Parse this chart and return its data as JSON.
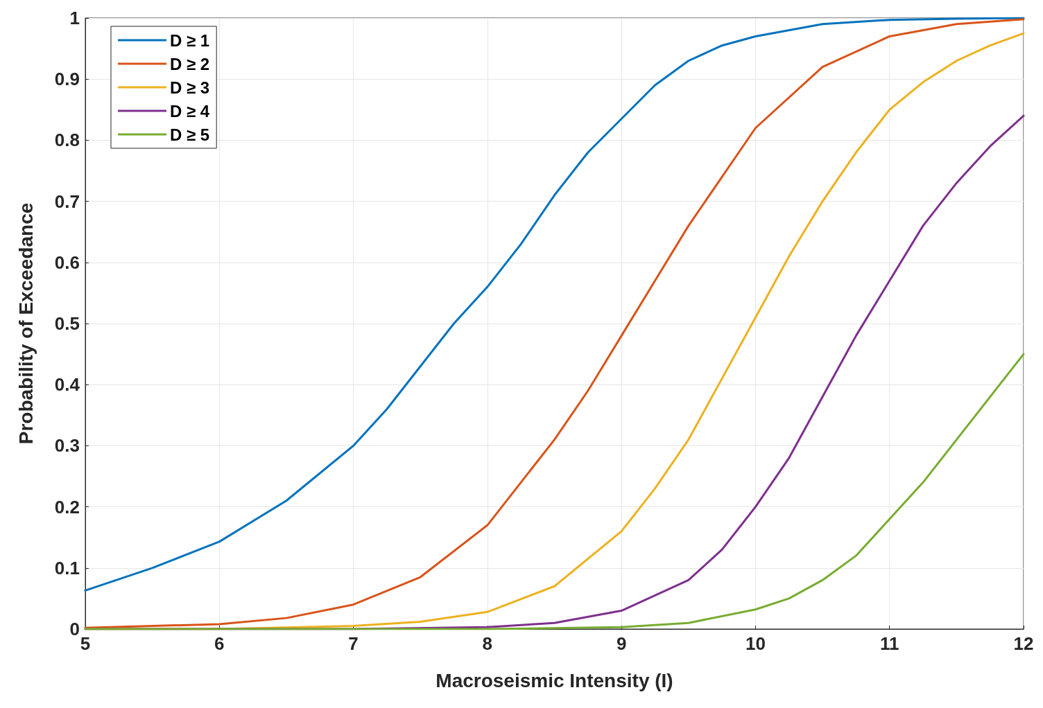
{
  "chart_data": {
    "type": "line",
    "xlabel": "Macroseismic Intensity (I)",
    "ylabel": "Probability of Exceedance",
    "xlim": [
      5,
      12
    ],
    "xticks": [
      5,
      6,
      7,
      8,
      9,
      10,
      11,
      12
    ],
    "ylim": [
      0,
      1
    ],
    "yticks": [
      0,
      0.1,
      0.2,
      0.3,
      0.4,
      0.5,
      0.6,
      0.7,
      0.8,
      0.9,
      1
    ],
    "grid": true,
    "legend": "top left",
    "marker": "none",
    "line_style": "solid",
    "series": [
      {
        "name": "D ≥ 1",
        "color": "#0072bd",
        "x": [
          5,
          5.5,
          6,
          6.5,
          7,
          7.25,
          7.5,
          7.75,
          8,
          8.25,
          8.5,
          8.75,
          9,
          9.25,
          9.5,
          9.75,
          10,
          10.5,
          11,
          11.5,
          12
        ],
        "values": [
          0.063,
          0.1,
          0.143,
          0.21,
          0.3,
          0.36,
          0.43,
          0.5,
          0.56,
          0.63,
          0.71,
          0.78,
          0.835,
          0.89,
          0.93,
          0.955,
          0.97,
          0.99,
          0.997,
          0.999,
          1
        ]
      },
      {
        "name": "D ≥ 2",
        "color": "#d95319",
        "x": [
          5,
          6,
          6.5,
          7,
          7.5,
          8,
          8.25,
          8.5,
          8.75,
          9,
          9.25,
          9.5,
          9.75,
          10,
          10.5,
          11,
          11.5,
          12
        ],
        "values": [
          0.002,
          0.008,
          0.018,
          0.04,
          0.085,
          0.17,
          0.24,
          0.31,
          0.39,
          0.48,
          0.57,
          0.66,
          0.74,
          0.82,
          0.92,
          0.97,
          0.99,
          0.998
        ]
      },
      {
        "name": "D ≥ 3",
        "color": "#edb120",
        "x": [
          5,
          6,
          7,
          7.5,
          8,
          8.5,
          9,
          9.25,
          9.5,
          9.75,
          10,
          10.25,
          10.5,
          10.75,
          11,
          11.25,
          11.5,
          11.75,
          12
        ],
        "values": [
          0,
          0,
          0.005,
          0.012,
          0.028,
          0.07,
          0.16,
          0.23,
          0.31,
          0.41,
          0.51,
          0.61,
          0.7,
          0.78,
          0.85,
          0.895,
          0.93,
          0.955,
          0.975
        ]
      },
      {
        "name": "D ≥ 4",
        "color": "#7e2f8e",
        "x": [
          5,
          7,
          8,
          8.5,
          9,
          9.5,
          9.75,
          10,
          10.25,
          10.5,
          10.75,
          11,
          11.25,
          11.5,
          11.75,
          12
        ],
        "values": [
          0,
          0,
          0.003,
          0.01,
          0.03,
          0.08,
          0.13,
          0.2,
          0.28,
          0.38,
          0.48,
          0.57,
          0.66,
          0.73,
          0.79,
          0.84
        ]
      },
      {
        "name": "D ≥ 5",
        "color": "#77ac30",
        "x": [
          5,
          8,
          9,
          9.5,
          10,
          10.25,
          10.5,
          10.75,
          11,
          11.25,
          11.5,
          11.75,
          12
        ],
        "values": [
          0,
          0,
          0.003,
          0.01,
          0.032,
          0.05,
          0.08,
          0.12,
          0.18,
          0.24,
          0.31,
          0.38,
          0.45
        ]
      }
    ]
  }
}
